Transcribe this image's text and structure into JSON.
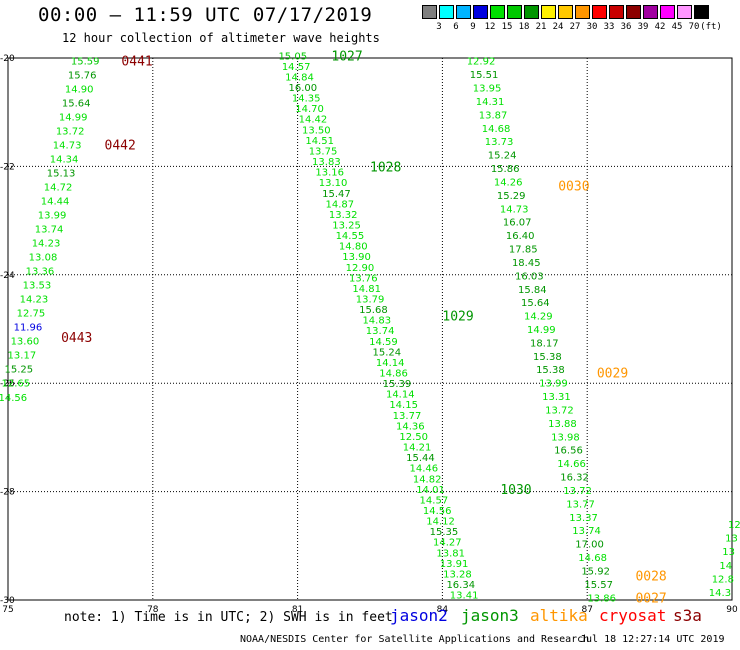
{
  "header": {
    "title": "00:00 — 11:59 UTC 07/17/2019",
    "subtitle": "12 hour collection of altimeter wave heights"
  },
  "color_scale": {
    "colors": [
      "#7f7f7f",
      "#00ffff",
      "#00b4ff",
      "#0000e0",
      "#00e000",
      "#00c800",
      "#009600",
      "#fff000",
      "#ffc800",
      "#ff9600",
      "#ff0000",
      "#c80000",
      "#8c0000",
      "#a000a0",
      "#ff00ff",
      "#ff96ff",
      "#000000"
    ],
    "labels": [
      "3",
      "6",
      "9",
      "12",
      "15",
      "18",
      "21",
      "24",
      "27",
      "30",
      "33",
      "36",
      "39",
      "42",
      "45",
      "70",
      "(ft)"
    ]
  },
  "notes": {
    "note_text": "note:  1) Time is in UTC;  2) SWH is in feet",
    "satellites": [
      {
        "name": "jason2",
        "color": "#0000e0"
      },
      {
        "name": "jason3",
        "color": "#009600"
      },
      {
        "name": "altika",
        "color": "#ff9600"
      },
      {
        "name": "cryosat",
        "color": "#ff0000"
      },
      {
        "name": "s3a",
        "color": "#8c0000"
      }
    ],
    "footer_left": "NOAA/NESDIS Center for Satellite Applications and Research",
    "footer_right": "Jul 18 12:27:14 UTC 2019"
  },
  "chart_data": {
    "type": "scatter",
    "xlim": [
      75,
      90
    ],
    "ylim": [
      -30,
      -20
    ],
    "x_ticks": [
      75,
      78,
      81,
      84,
      87,
      90
    ],
    "x_tick_labels": [
      "75",
      "78",
      "81",
      "84",
      "87",
      "90"
    ],
    "y_ticks": [
      -30,
      -28,
      -26,
      -24,
      -22,
      -20
    ],
    "y_tick_labels": [
      "-30",
      "-28",
      "-26",
      "-24",
      "-22",
      "-20"
    ],
    "grid": true,
    "units": "ft",
    "tracks": [
      {
        "x0": 76.6,
        "y0": -20.05,
        "x1": 75.1,
        "y1": -26.25,
        "values": [
          "15.59",
          "15.76",
          "14.90",
          "15.64",
          "14.99",
          "13.72",
          "14.73",
          "14.34",
          "15.13",
          "14.72",
          "14.44",
          "13.99",
          "13.74",
          "14.23",
          "13.08",
          "13.36",
          "13.53",
          "14.23",
          "12.75",
          "11.96",
          "13.60",
          "13.17",
          "15.25",
          "12.65",
          "14.56"
        ],
        "colors": [
          "#00c800",
          "#009600",
          "#00e000",
          "#009600",
          "#00e000",
          "#00e000",
          "#00e000",
          "#00e000",
          "#009600",
          "#00e000",
          "#00e000",
          "#00e000",
          "#00e000",
          "#00e000",
          "#00e000",
          "#00e000",
          "#00e000",
          "#00e000",
          "#00e000",
          "#0000e0",
          "#00e000",
          "#00e000",
          "#009600",
          "#00e000",
          "#00e000"
        ]
      },
      {
        "x0": 80.9,
        "y0": -19.95,
        "x1": 84.45,
        "y1": -29.9,
        "values": [
          "15.05",
          "14.57",
          "14.84",
          "16.00",
          "14.35",
          "14.70",
          "14.42",
          "13.50",
          "14.51",
          "13.75",
          "13.83",
          "13.16",
          "13.10",
          "15.47",
          "14.87",
          "13.32",
          "13.25",
          "14.55",
          "14.80",
          "13.90",
          "12.90",
          "13.76",
          "14.81",
          "13.79",
          "15.68",
          "14.83",
          "13.74",
          "14.59",
          "15.24",
          "14.14",
          "14.86",
          "15.39",
          "14.14",
          "14.15",
          "13.77",
          "14.36",
          "12.50",
          "14.21",
          "15.44",
          "14.46",
          "14.82",
          "14.01",
          "14.57",
          "14.56",
          "14.12",
          "15.35",
          "14.27",
          "13.81",
          "13.91",
          "13.28",
          "16.34",
          "13.41"
        ],
        "colors": [
          "#00c800",
          "#00e000",
          "#00e000",
          "#009600",
          "#00e000",
          "#00e000",
          "#00e000",
          "#00e000",
          "#00e000",
          "#00e000",
          "#00e000",
          "#00e000",
          "#00e000",
          "#009600",
          "#00e000",
          "#00e000",
          "#00e000",
          "#00e000",
          "#00e000",
          "#00e000",
          "#00e000",
          "#00e000",
          "#00e000",
          "#00e000",
          "#009600",
          "#00e000",
          "#00e000",
          "#00e000",
          "#009600",
          "#00e000",
          "#00e000",
          "#009600",
          "#00e000",
          "#00e000",
          "#00e000",
          "#00e000",
          "#00e000",
          "#00e000",
          "#009600",
          "#00e000",
          "#00e000",
          "#00e000",
          "#00e000",
          "#00e000",
          "#00e000",
          "#009600",
          "#00e000",
          "#00e000",
          "#00e000",
          "#00e000",
          "#009600",
          "#00e000"
        ]
      },
      {
        "x0": 84.8,
        "y0": -20.05,
        "x1": 87.3,
        "y1": -29.95,
        "values": [
          "12.92",
          "15.51",
          "13.95",
          "14.31",
          "13.87",
          "14.68",
          "13.73",
          "15.24",
          "15.86",
          "14.26",
          "15.29",
          "14.73",
          "16.07",
          "16.40",
          "17.85",
          "18.45",
          "16.03",
          "15.84",
          "15.64",
          "14.29",
          "14.99",
          "18.17",
          "15.38",
          "15.38",
          "13.99",
          "13.31",
          "13.72",
          "13.88",
          "13.98",
          "16.56",
          "14.66",
          "16.32",
          "13.72",
          "13.77",
          "13.37",
          "13.74",
          "17.00",
          "14.68",
          "15.92",
          "15.57",
          "13.86"
        ],
        "colors": [
          "#00e000",
          "#009600",
          "#00e000",
          "#00e000",
          "#00e000",
          "#00e000",
          "#00e000",
          "#009600",
          "#009600",
          "#00e000",
          "#009600",
          "#00e000",
          "#009600",
          "#009600",
          "#009600",
          "#009600",
          "#009600",
          "#009600",
          "#009600",
          "#00e000",
          "#00e000",
          "#009600",
          "#009600",
          "#009600",
          "#00e000",
          "#00e000",
          "#00e000",
          "#00e000",
          "#00e000",
          "#009600",
          "#00e000",
          "#009600",
          "#00e000",
          "#00e000",
          "#00e000",
          "#00e000",
          "#009600",
          "#00e000",
          "#009600",
          "#009600",
          "#00e000"
        ]
      },
      {
        "x0": 90.05,
        "y0": -28.6,
        "x1": 89.75,
        "y1": -29.85,
        "values": [
          "12",
          "13",
          "13",
          "14",
          "12.8",
          "14.3"
        ],
        "colors": [
          "#00e000",
          "#00e000",
          "#00e000",
          "#00e000",
          "#00e000",
          "#00e000"
        ]
      }
    ],
    "time_labels": [
      {
        "text": "0441",
        "x": 77.35,
        "y": -20.05,
        "color": "#8c0000"
      },
      {
        "text": "0442",
        "x": 77.0,
        "y": -21.6,
        "color": "#8c0000"
      },
      {
        "text": "0443",
        "x": 76.1,
        "y": -25.15,
        "color": "#8c0000"
      },
      {
        "text": "1027",
        "x": 81.7,
        "y": -19.95,
        "color": "#009600"
      },
      {
        "text": "1028",
        "x": 82.5,
        "y": -22.0,
        "color": "#009600"
      },
      {
        "text": "1029",
        "x": 84.0,
        "y": -24.75,
        "color": "#009600"
      },
      {
        "text": "1030",
        "x": 85.2,
        "y": -27.95,
        "color": "#009600"
      },
      {
        "text": "0030",
        "x": 86.4,
        "y": -22.35,
        "color": "#ff9600"
      },
      {
        "text": "0029",
        "x": 87.2,
        "y": -25.8,
        "color": "#ff9600"
      },
      {
        "text": "0028",
        "x": 88.0,
        "y": -29.55,
        "color": "#ff9600"
      },
      {
        "text": "0027",
        "x": 88.0,
        "y": -29.95,
        "color": "#ff9600"
      }
    ]
  }
}
